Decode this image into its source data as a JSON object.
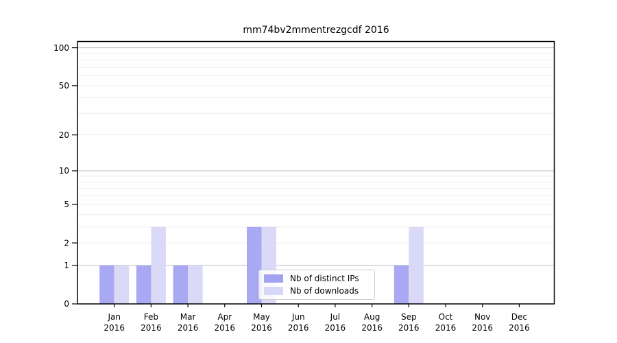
{
  "figure": {
    "title": "mm74bv2mmentrezgcdf 2016",
    "background": "#ffffff"
  },
  "chart_data": {
    "type": "bar",
    "title": "mm74bv2mmentrezgcdf 2016",
    "x_categories": [
      {
        "month": "Jan",
        "year": "2016"
      },
      {
        "month": "Feb",
        "year": "2016"
      },
      {
        "month": "Mar",
        "year": "2016"
      },
      {
        "month": "Apr",
        "year": "2016"
      },
      {
        "month": "May",
        "year": "2016"
      },
      {
        "month": "Jun",
        "year": "2016"
      },
      {
        "month": "Jul",
        "year": "2016"
      },
      {
        "month": "Aug",
        "year": "2016"
      },
      {
        "month": "Sep",
        "year": "2016"
      },
      {
        "month": "Oct",
        "year": "2016"
      },
      {
        "month": "Nov",
        "year": "2016"
      },
      {
        "month": "Dec",
        "year": "2016"
      }
    ],
    "series": [
      {
        "name": "Nb of distinct IPs",
        "color": "#a2a2f2",
        "values": [
          1,
          1,
          1,
          0,
          3,
          0,
          0,
          0,
          1,
          0,
          0,
          0
        ]
      },
      {
        "name": "Nb of downloads",
        "color": "#d7d7f8",
        "values": [
          1,
          3,
          1,
          0,
          3,
          0,
          0,
          0,
          3,
          0,
          0,
          0
        ]
      }
    ],
    "yscale": "log1p",
    "ylim": [
      0,
      112
    ],
    "ytick_labels": [
      0,
      1,
      2,
      5,
      10,
      20,
      50,
      100
    ],
    "major_gridlines": [
      1,
      10,
      100
    ],
    "minor_gridlines": [
      2,
      3,
      4,
      5,
      6,
      7,
      8,
      9,
      20,
      30,
      40,
      50,
      60,
      70,
      80,
      90
    ],
    "grid": true,
    "legend_position": "lower-center",
    "colors": {
      "axis": "#000000",
      "major_grid": "#bdbdbd",
      "minor_grid": "#ededed",
      "legend_border": "#cccccc",
      "text": "#000000"
    }
  }
}
